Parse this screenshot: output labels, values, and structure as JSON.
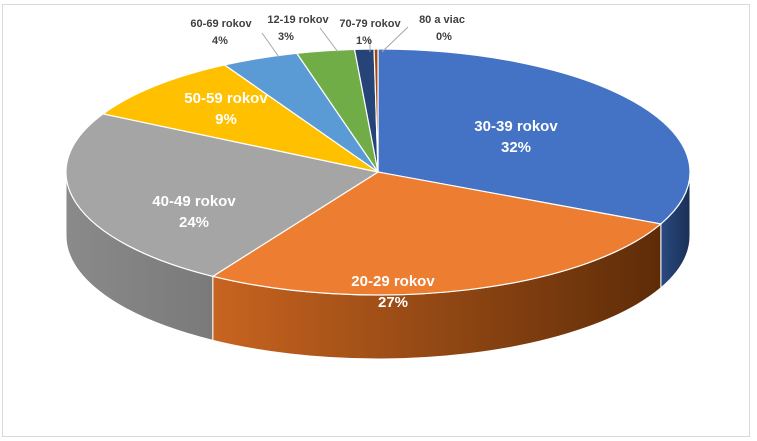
{
  "chart_data": {
    "type": "pie",
    "title": "",
    "style": "3d",
    "slices": [
      {
        "label": "30-39 rokov",
        "pct_label": "32%",
        "value": 32,
        "color": "#4472c4"
      },
      {
        "label": "20-29 rokov",
        "pct_label": "27%",
        "value": 27,
        "color": "#ed7d31"
      },
      {
        "label": "40-49 rokov",
        "pct_label": "24%",
        "value": 24,
        "color": "#a5a5a5"
      },
      {
        "label": "50-59 rokov",
        "pct_label": "9%",
        "value": 9,
        "color": "#ffc000"
      },
      {
        "label": "60-69 rokov",
        "pct_label": "4%",
        "value": 4,
        "color": "#5b9bd5"
      },
      {
        "label": "12-19 rokov",
        "pct_label": "3%",
        "value": 3,
        "color": "#70ad47"
      },
      {
        "label": "70-79 rokov",
        "pct_label": "1%",
        "value": 1,
        "color": "#264478"
      },
      {
        "label": "80 a viac",
        "pct_label": "0%",
        "value": 0.2,
        "color": "#9e480e"
      }
    ]
  }
}
